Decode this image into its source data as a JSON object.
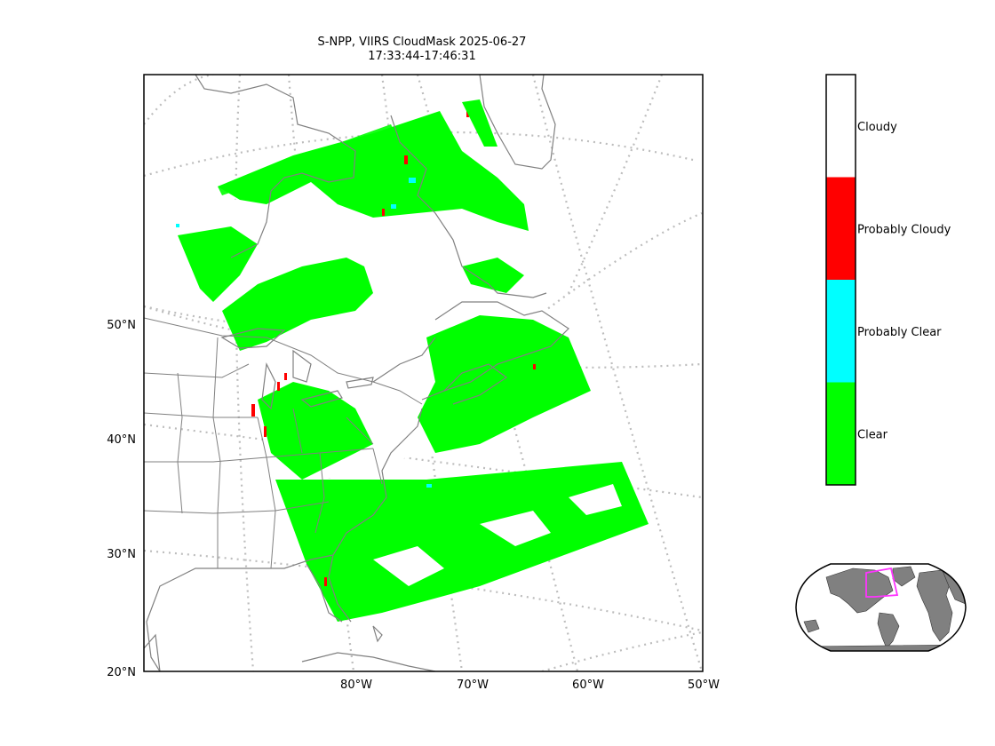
{
  "title": {
    "line1": "S-NPP, VIIRS CloudMask 2025-06-27",
    "line2": "17:33:44-17:46:31"
  },
  "map": {
    "projection": "lambert-conformal",
    "lat_labels": [
      "50°N",
      "40°N",
      "30°N",
      "20°N"
    ],
    "lon_labels": [
      "80°W",
      "70°W",
      "60°W",
      "50°W"
    ],
    "coastline_color": "#808080",
    "graticule_color": "#bdbdbd"
  },
  "legend": {
    "categories": [
      {
        "label": "Cloudy",
        "color": "#ffffff"
      },
      {
        "label": "Probably Cloudy",
        "color": "#ff0000"
      },
      {
        "label": "Probably Clear",
        "color": "#00ffff"
      },
      {
        "label": "Clear",
        "color": "#00ff00"
      }
    ]
  },
  "inset": {
    "land_color": "#808080",
    "footprint_color": "#ff33ff"
  }
}
